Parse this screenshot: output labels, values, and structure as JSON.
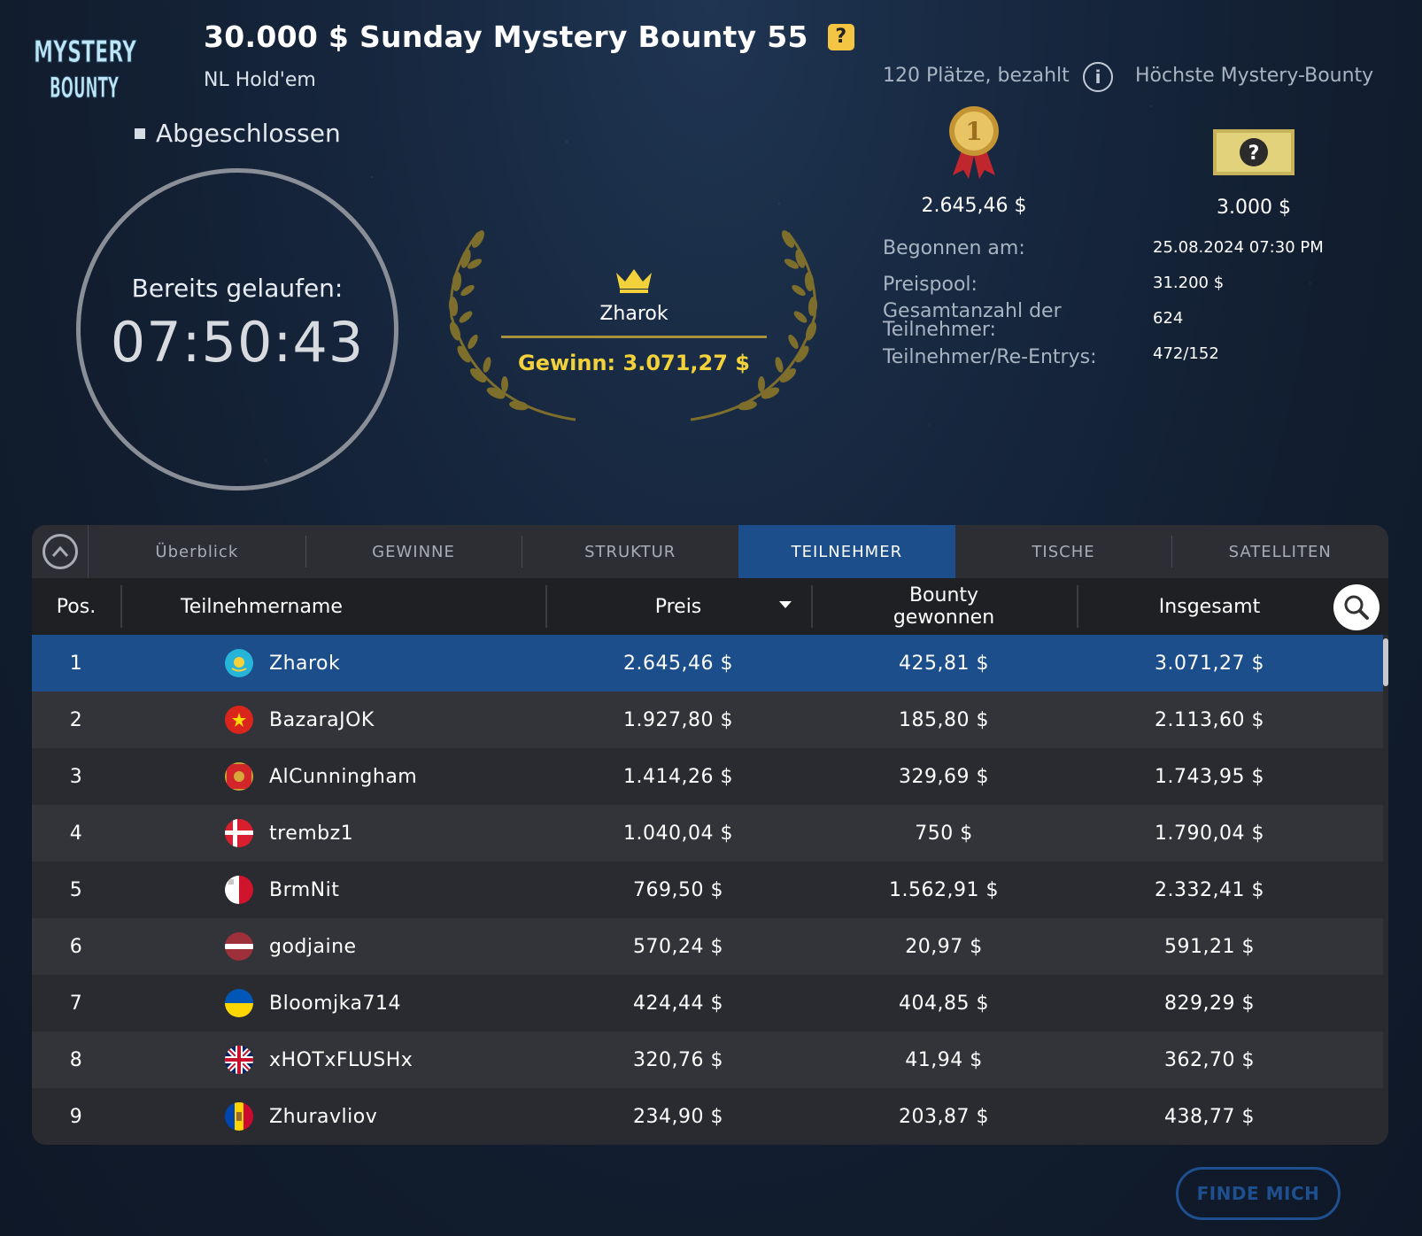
{
  "header": {
    "title": "30.000 $ Sunday Mystery Bounty 55",
    "game_type": "NL Hold'em",
    "status": "Abgeschlossen",
    "logo_text_top": "MYSTERY",
    "logo_text_bottom": "BOUNTY"
  },
  "timer": {
    "label": "Bereits gelaufen:",
    "value": "07:50:43"
  },
  "winner": {
    "name": "Zharok",
    "prize": "Gewinn: 3.071,27 $"
  },
  "info": {
    "places_paid": "120 Plätze, bezahlt",
    "highest_bounty_label": "Höchste Mystery-Bounty",
    "first_prize": "2.645,46 $",
    "highest_bounty": "3.000 $",
    "rows": [
      {
        "label": "Begonnen am:",
        "value": "25.08.2024    07:30 PM"
      },
      {
        "label": "Preispool:",
        "value": "31.200 $"
      },
      {
        "label": "Gesamtanzahl der Teilnehmer:",
        "value": "624"
      },
      {
        "label": "Teilnehmer/Re-Entrys:",
        "value": "472/152"
      }
    ]
  },
  "tabs": [
    "Überblick",
    "GEWINNE",
    "STRUKTUR",
    "TEILNEHMER",
    "TISCHE",
    "SATELLITEN"
  ],
  "active_tab": "TEILNEHMER",
  "table": {
    "headers": {
      "pos": "Pos.",
      "name": "Teilnehmername",
      "prize": "Preis",
      "bounty": "Bounty gewonnen",
      "total": "Insgesamt"
    },
    "rows": [
      {
        "pos": "1",
        "name": "Zharok",
        "flag": "kazakhstan",
        "prize": "2.645,46 $",
        "bounty": "425,81 $",
        "total": "3.071,27 $"
      },
      {
        "pos": "2",
        "name": "BazaraJOK",
        "flag": "vietnam",
        "prize": "1.927,80 $",
        "bounty": "185,80 $",
        "total": "2.113,60 $"
      },
      {
        "pos": "3",
        "name": "AlCunningham",
        "flag": "montenegro",
        "prize": "1.414,26 $",
        "bounty": "329,69 $",
        "total": "1.743,95 $"
      },
      {
        "pos": "4",
        "name": "trembz1",
        "flag": "denmark",
        "prize": "1.040,04 $",
        "bounty": "750 $",
        "total": "1.790,04 $"
      },
      {
        "pos": "5",
        "name": "BrmNit",
        "flag": "malta",
        "prize": "769,50 $",
        "bounty": "1.562,91 $",
        "total": "2.332,41 $"
      },
      {
        "pos": "6",
        "name": "godjaine",
        "flag": "latvia",
        "prize": "570,24 $",
        "bounty": "20,97 $",
        "total": "591,21 $"
      },
      {
        "pos": "7",
        "name": "Bloomjka714",
        "flag": "ukraine",
        "prize": "424,44 $",
        "bounty": "404,85 $",
        "total": "829,29 $"
      },
      {
        "pos": "8",
        "name": "xHOTxFLUSHx",
        "flag": "united-kingdom",
        "prize": "320,76 $",
        "bounty": "41,94 $",
        "total": "362,70 $"
      },
      {
        "pos": "9",
        "name": "Zhuravliov",
        "flag": "moldova",
        "prize": "234,90 $",
        "bounty": "203,87 $",
        "total": "438,77 $"
      }
    ]
  },
  "find_me_label": "FINDE MICH",
  "colors": {
    "accent": "#1b4e8a",
    "gold": "#f3d13b",
    "background": "#16263d"
  }
}
